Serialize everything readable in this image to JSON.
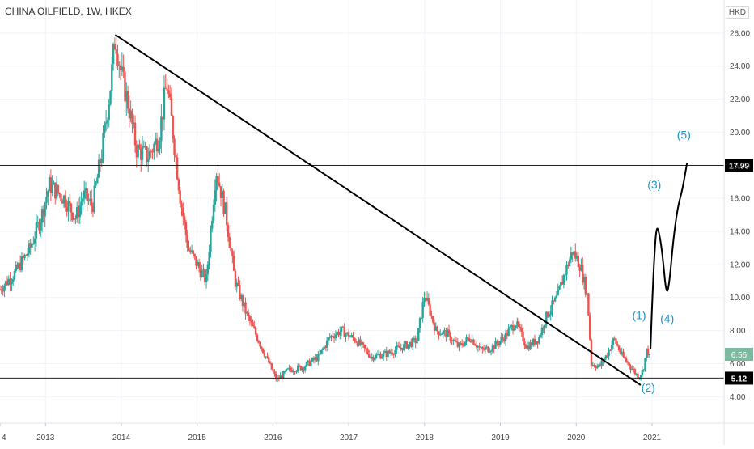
{
  "header": {
    "symbol_line": "CHINA OILFIELD, 1W, HKEX",
    "currency": "HKD"
  },
  "colors": {
    "up": "#26a69a",
    "down": "#ef5350",
    "trendline": "#000000",
    "annotation": "#2196c8",
    "last_price_badge": "#7cb9a0",
    "level_badge": "#000000"
  },
  "chart_data": {
    "type": "candlestick",
    "title": "CHINA OILFIELD, 1W, HKEX",
    "y_unit": "HKD",
    "ylim": [
      2.4,
      28.0
    ],
    "y_ticks": [
      "4.00",
      "6.00",
      "8.00",
      "10.00",
      "12.00",
      "14.00",
      "16.00",
      "18.00",
      "20.00",
      "22.00",
      "24.00",
      "26.00"
    ],
    "x_ticks": [
      "4",
      "2013",
      "2014",
      "2015",
      "2016",
      "2017",
      "2018",
      "2019",
      "2020",
      "2021"
    ],
    "x_range": [
      2012.4,
      2021.95
    ],
    "grid": true,
    "price_path": [
      [
        2012.4,
        10.5
      ],
      [
        2012.6,
        11.5
      ],
      [
        2012.8,
        13.0
      ],
      [
        2012.95,
        15.0
      ],
      [
        2013.05,
        16.8
      ],
      [
        2013.25,
        16.0
      ],
      [
        2013.4,
        14.8
      ],
      [
        2013.5,
        16.2
      ],
      [
        2013.62,
        15.5
      ],
      [
        2013.75,
        19.0
      ],
      [
        2013.85,
        22.5
      ],
      [
        2013.92,
        25.8
      ],
      [
        2014.0,
        23.5
      ],
      [
        2014.1,
        21.5
      ],
      [
        2014.2,
        19.0
      ],
      [
        2014.35,
        18.5
      ],
      [
        2014.5,
        19.8
      ],
      [
        2014.6,
        23.0
      ],
      [
        2014.68,
        20.0
      ],
      [
        2014.78,
        16.0
      ],
      [
        2014.88,
        13.0
      ],
      [
        2015.0,
        12.0
      ],
      [
        2015.12,
        11.0
      ],
      [
        2015.25,
        17.8
      ],
      [
        2015.38,
        15.0
      ],
      [
        2015.5,
        11.0
      ],
      [
        2015.65,
        9.0
      ],
      [
        2015.8,
        7.5
      ],
      [
        2015.95,
        6.0
      ],
      [
        2016.05,
        5.0
      ],
      [
        2016.2,
        5.6
      ],
      [
        2016.4,
        5.8
      ],
      [
        2016.6,
        6.4
      ],
      [
        2016.75,
        7.6
      ],
      [
        2016.9,
        8.0
      ],
      [
        2017.1,
        7.4
      ],
      [
        2017.3,
        6.4
      ],
      [
        2017.5,
        6.6
      ],
      [
        2017.7,
        7.0
      ],
      [
        2017.9,
        7.4
      ],
      [
        2018.0,
        10.2
      ],
      [
        2018.15,
        8.0
      ],
      [
        2018.3,
        7.8
      ],
      [
        2018.45,
        7.0
      ],
      [
        2018.6,
        7.6
      ],
      [
        2018.75,
        6.8
      ],
      [
        2018.9,
        7.0
      ],
      [
        2019.05,
        7.6
      ],
      [
        2019.2,
        8.5
      ],
      [
        2019.35,
        7.0
      ],
      [
        2019.5,
        7.5
      ],
      [
        2019.62,
        9.0
      ],
      [
        2019.75,
        10.0
      ],
      [
        2019.85,
        11.5
      ],
      [
        2019.95,
        12.8
      ],
      [
        2020.05,
        12.0
      ],
      [
        2020.15,
        10.0
      ],
      [
        2020.2,
        6.0
      ],
      [
        2020.3,
        5.8
      ],
      [
        2020.4,
        6.5
      ],
      [
        2020.5,
        7.5
      ],
      [
        2020.6,
        6.5
      ],
      [
        2020.72,
        5.8
      ],
      [
        2020.82,
        5.2
      ],
      [
        2020.88,
        5.6
      ],
      [
        2020.93,
        6.8
      ],
      [
        2020.98,
        6.56
      ]
    ],
    "trendline": {
      "from": [
        2013.92,
        25.9
      ],
      "to": [
        2020.85,
        4.7
      ]
    },
    "horizontal_levels": [
      {
        "price": 17.99,
        "label": "17.99"
      },
      {
        "price": 5.12,
        "label": "5.12"
      }
    ],
    "last_price": {
      "price": 6.56,
      "label": "6.56"
    },
    "projection_path": [
      [
        2020.98,
        6.9
      ],
      [
        2021.0,
        9.5
      ],
      [
        2021.03,
        12.5
      ],
      [
        2021.06,
        14.4
      ],
      [
        2021.1,
        13.8
      ],
      [
        2021.14,
        12.5
      ],
      [
        2021.19,
        10.1
      ],
      [
        2021.23,
        10.9
      ],
      [
        2021.28,
        13.5
      ],
      [
        2021.34,
        15.5
      ],
      [
        2021.4,
        16.5
      ],
      [
        2021.46,
        18.1
      ]
    ],
    "wave_labels": [
      {
        "text": "(1)",
        "x": 2020.83,
        "y": 8.7
      },
      {
        "text": "(2)",
        "x": 2020.95,
        "y": 4.3
      },
      {
        "text": "(3)",
        "x": 2021.03,
        "y": 16.6
      },
      {
        "text": "(4)",
        "x": 2021.2,
        "y": 8.5
      },
      {
        "text": "(5)",
        "x": 2021.42,
        "y": 19.6
      }
    ]
  }
}
